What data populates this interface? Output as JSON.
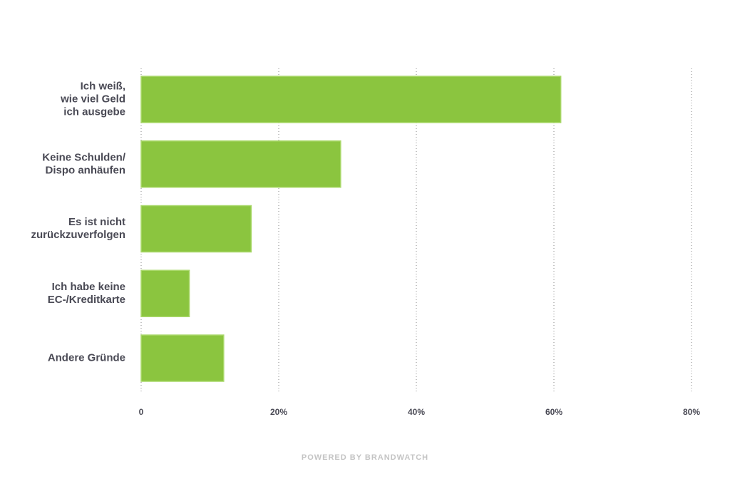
{
  "chart_data": {
    "type": "bar",
    "orientation": "horizontal",
    "categories": [
      "Ich weiß,\nwie viel Geld\nich ausgebe",
      "Keine Schulden/\nDispo anhäufen",
      "Es ist nicht\nzurückzuverfolgen",
      "Ich habe keine\nEC-/Kreditkarte",
      "Andere Gründe"
    ],
    "values": [
      61,
      29,
      16,
      7,
      12
    ],
    "xlim": [
      0,
      80
    ],
    "x_ticks": [
      0,
      20,
      40,
      60,
      80
    ],
    "x_tick_labels": [
      "0",
      "20%",
      "40%",
      "60%",
      "80%"
    ],
    "grid": "vertical-dotted",
    "bar_color": "#8bc53f",
    "bar_border_color": "#a9d86a",
    "title": "",
    "xlabel": "",
    "ylabel": ""
  },
  "footer": {
    "text": "POWERED BY BRANDWATCH"
  },
  "colors": {
    "label": "#4a4a55",
    "grid": "#8a8a8a",
    "footer": "#c4c4c4"
  }
}
